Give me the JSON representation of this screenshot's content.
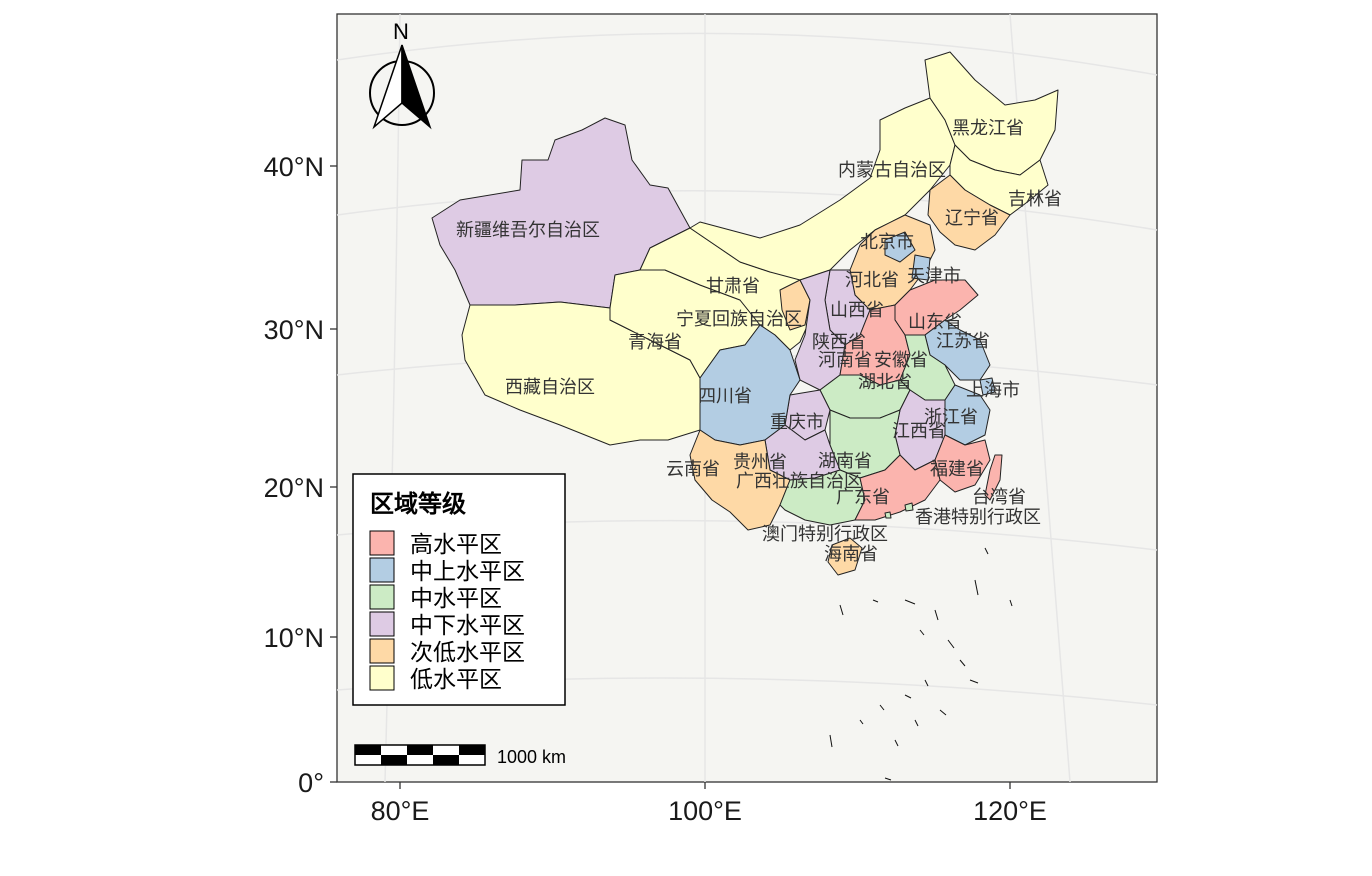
{
  "map": {
    "legend": {
      "title": "区域等级",
      "items": [
        {
          "label": "高水平区",
          "color": "#FBB4AE"
        },
        {
          "label": "中上水平区",
          "color": "#B3CDE3"
        },
        {
          "label": "中水平区",
          "color": "#CCEBC5"
        },
        {
          "label": "中下水平区",
          "color": "#DECBE4"
        },
        {
          "label": "次低水平区",
          "color": "#FED9A6"
        },
        {
          "label": "低水平区",
          "color": "#FFFFCC"
        }
      ]
    },
    "scale_bar_label": "1000 km",
    "north_label": "N",
    "x_ticks": [
      "80°E",
      "100°E",
      "120°E"
    ],
    "y_ticks": [
      "0°",
      "10°N",
      "20°N",
      "30°N",
      "40°N"
    ],
    "panel_background": "#F5F5F2",
    "provinces": [
      {
        "name": "黑龙江省",
        "level": 5
      },
      {
        "name": "内蒙古自治区",
        "level": 5
      },
      {
        "name": "吉林省",
        "level": 5
      },
      {
        "name": "辽宁省",
        "level": 4
      },
      {
        "name": "新疆维吾尔自治区",
        "level": 3
      },
      {
        "name": "北京市",
        "level": 1
      },
      {
        "name": "天津市",
        "level": 1
      },
      {
        "name": "河北省",
        "level": 4
      },
      {
        "name": "甘肃省",
        "level": 5
      },
      {
        "name": "山西省",
        "level": 3
      },
      {
        "name": "山东省",
        "level": 0
      },
      {
        "name": "宁夏回族自治区",
        "level": 4
      },
      {
        "name": "青海省",
        "level": 5
      },
      {
        "name": "陕西省",
        "level": 3
      },
      {
        "name": "江苏省",
        "level": 1
      },
      {
        "name": "河南省",
        "level": 0
      },
      {
        "name": "安徽省",
        "level": 2
      },
      {
        "name": "湖北省",
        "level": 2
      },
      {
        "name": "上海市",
        "level": 1
      },
      {
        "name": "西藏自治区",
        "level": 5
      },
      {
        "name": "四川省",
        "level": 1
      },
      {
        "name": "重庆市",
        "level": 3
      },
      {
        "name": "浙江省",
        "level": 1
      },
      {
        "name": "江西省",
        "level": 3
      },
      {
        "name": "湖南省",
        "level": 2
      },
      {
        "name": "福建省",
        "level": 0
      },
      {
        "name": "云南省",
        "level": 4
      },
      {
        "name": "贵州省",
        "level": 3
      },
      {
        "name": "广西壮族自治区",
        "level": 2
      },
      {
        "name": "广东省",
        "level": 0
      },
      {
        "name": "台湾省",
        "level": 0
      },
      {
        "name": "香港特别行政区",
        "level": 2
      },
      {
        "name": "澳门特别行政区",
        "level": 2
      },
      {
        "name": "海南省",
        "level": 4
      }
    ]
  }
}
